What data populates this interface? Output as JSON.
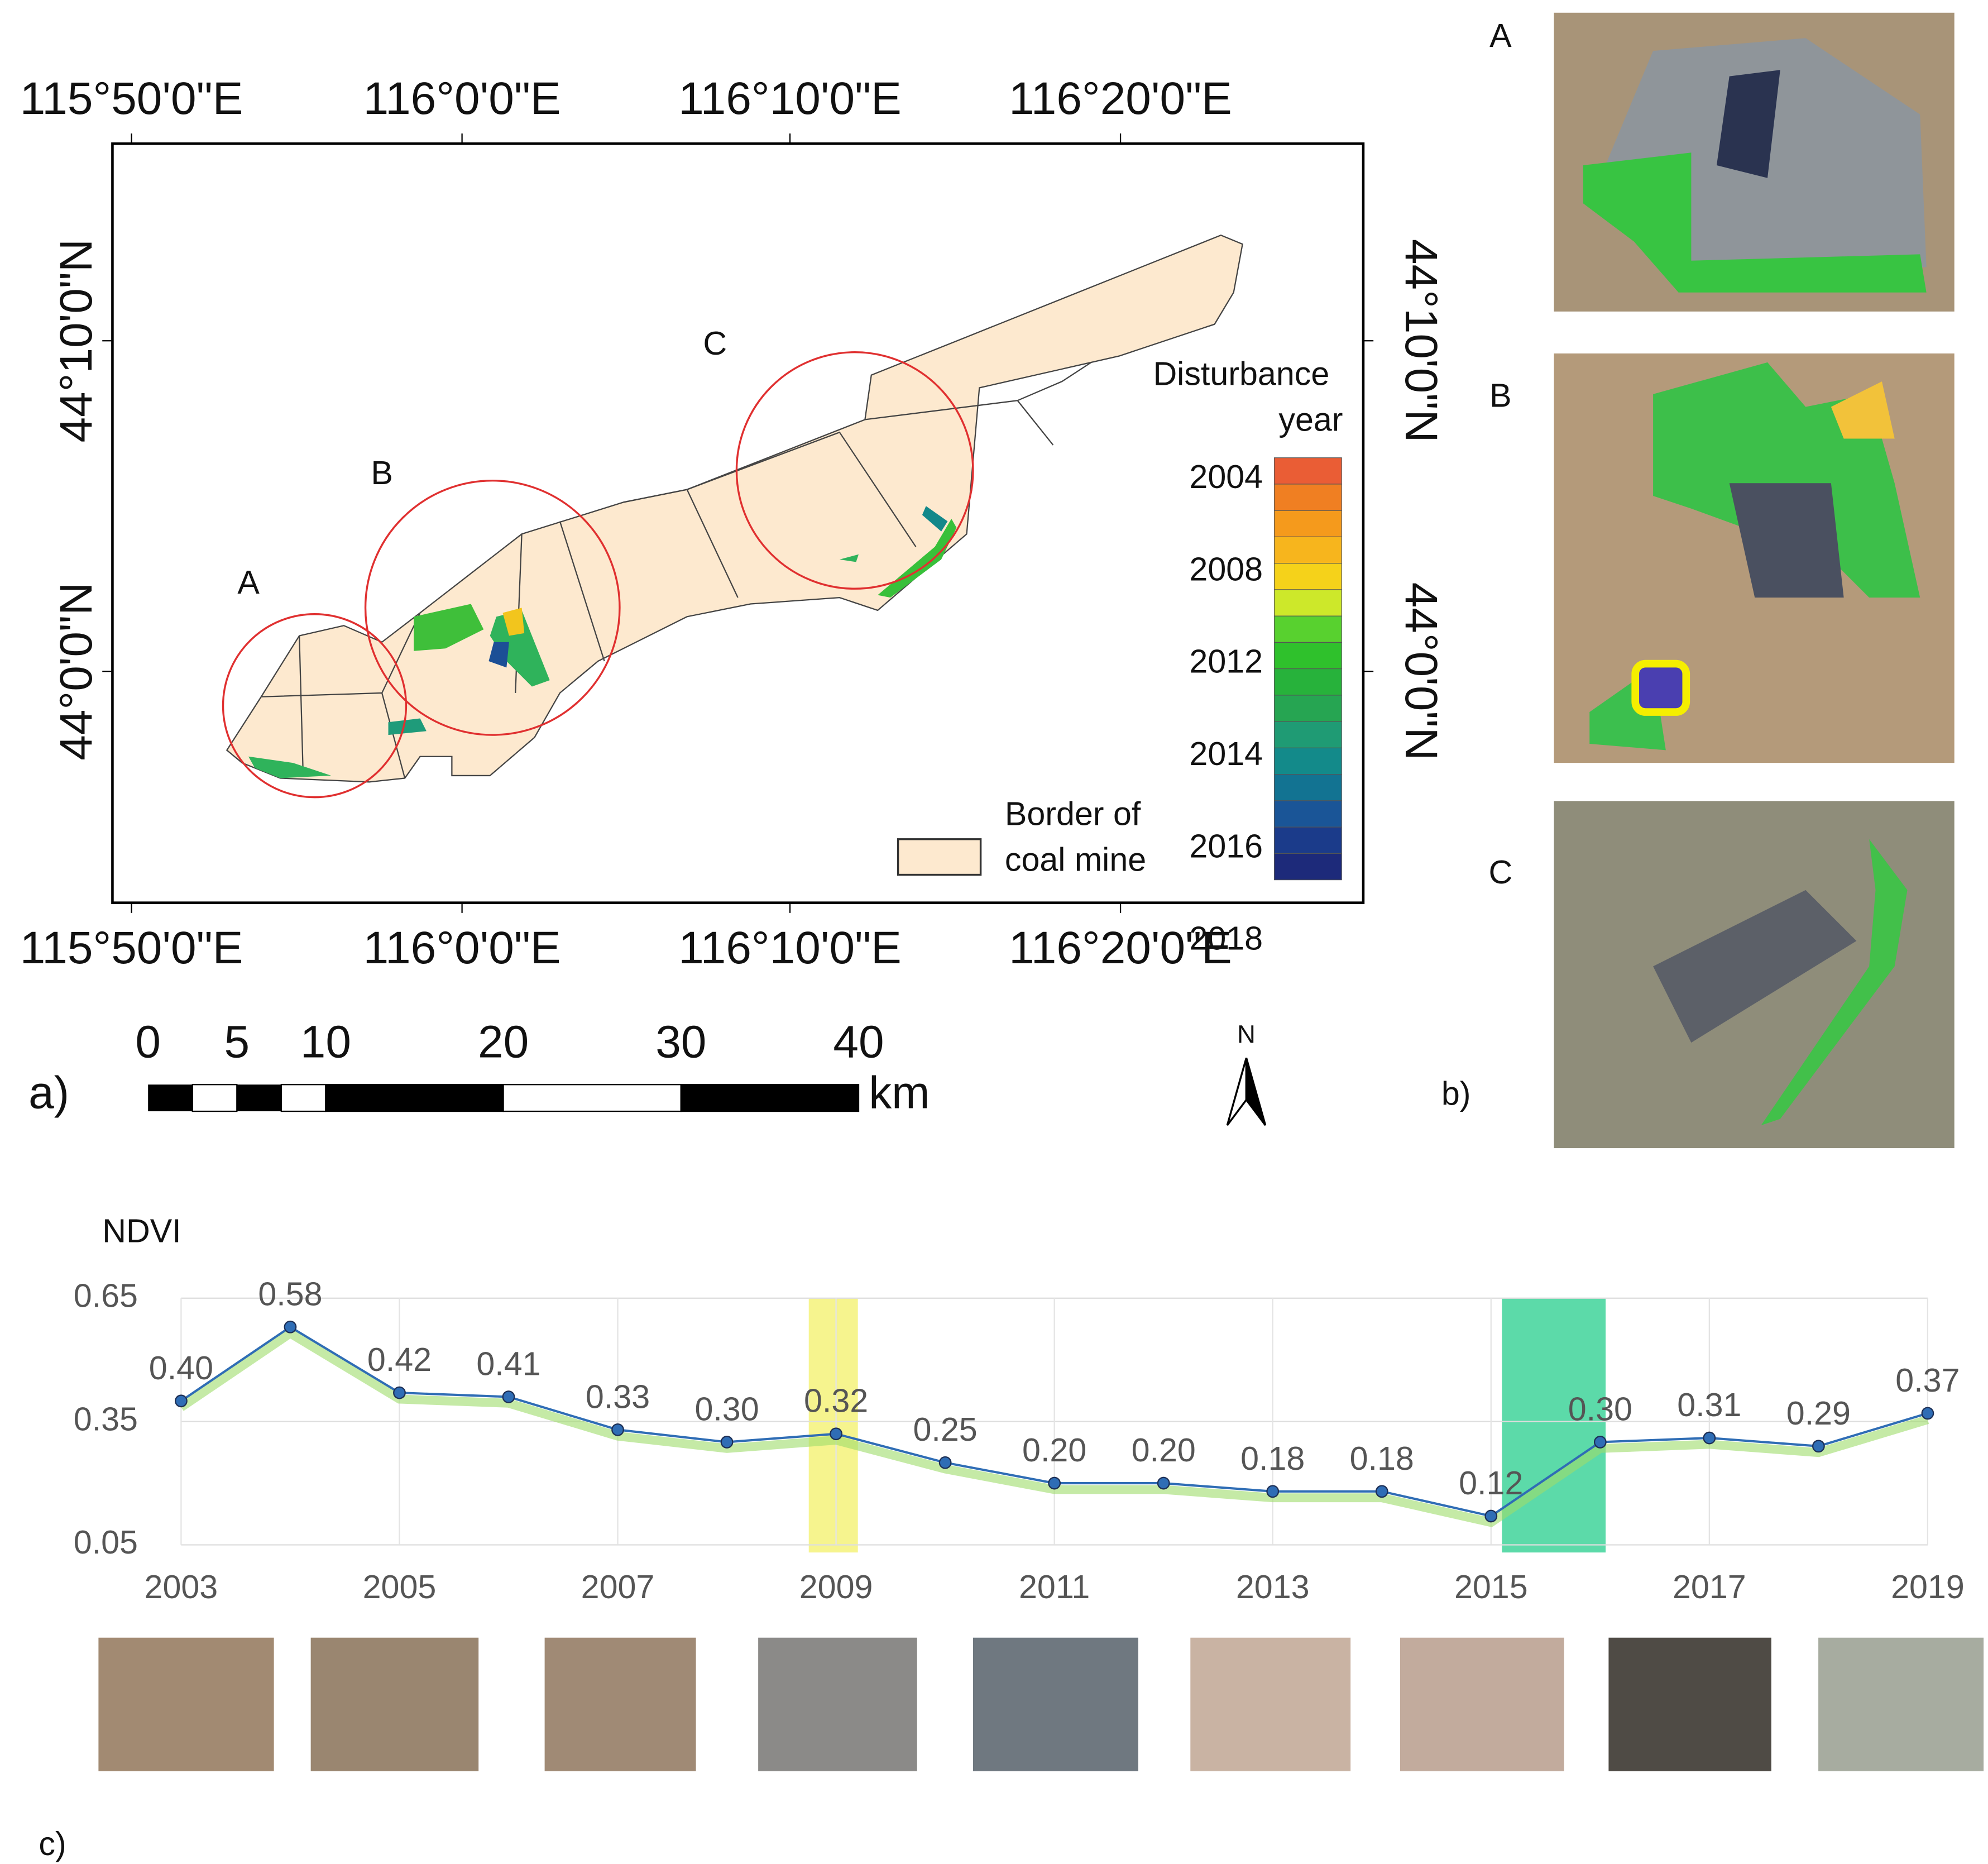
{
  "figure": {
    "panel_labels": [
      "a)",
      "b)",
      "c)"
    ]
  },
  "map": {
    "lon_labels": [
      "115°50'0\"E",
      "116°0'0\"E",
      "116°10'0\"E",
      "116°20'0\"E"
    ],
    "lat_labels": [
      "44°10'0\"N",
      "44°0'0\"N"
    ],
    "site_labels": [
      "A",
      "B",
      "C"
    ],
    "legend_title": [
      "Disturbance",
      "year"
    ],
    "legend_years": [
      2004,
      2008,
      2012,
      2014,
      2016,
      2018
    ],
    "border_label": [
      "Border of",
      "coal mine"
    ],
    "scale_ticks": [
      0,
      5,
      10,
      20,
      30,
      40
    ],
    "scale_unit": "km",
    "north": "N"
  },
  "insets": {
    "labels": [
      "A",
      "B",
      "C"
    ]
  },
  "chart_data": {
    "type": "line",
    "y_label": "NDVI",
    "x": [
      2003,
      2004,
      2005,
      2006,
      2007,
      2008,
      2009,
      2010,
      2011,
      2012,
      2013,
      2014,
      2015,
      2016,
      2017,
      2018,
      2019
    ],
    "values": [
      0.4,
      0.58,
      0.42,
      0.41,
      0.33,
      0.3,
      0.32,
      0.25,
      0.2,
      0.2,
      0.18,
      0.18,
      0.12,
      0.3,
      0.31,
      0.29,
      0.37
    ],
    "value_labels": [
      "0.40",
      "0.58",
      "0.42",
      "0.41",
      "0.33",
      "0.30",
      "0.32",
      "0.25",
      "0.20",
      "0.20",
      "0.18",
      "0.18",
      "0.12",
      "0.30",
      "0.31",
      "0.29",
      "0.37"
    ],
    "color": "#2f6db5",
    "xlim": [
      2003,
      2019
    ],
    "xticks": [
      2003,
      2005,
      2007,
      2009,
      2011,
      2013,
      2015,
      2017,
      2019
    ],
    "ylim": [
      0.05,
      0.65
    ],
    "yticks": [
      0.05,
      0.35,
      0.65
    ],
    "grid": true,
    "highlights": [
      {
        "x": [
          2008.75,
          2009.2
        ],
        "color": "#f5f27a"
      },
      {
        "x": [
          2015.1,
          2016.05
        ],
        "color": "#3fd39a"
      }
    ]
  }
}
